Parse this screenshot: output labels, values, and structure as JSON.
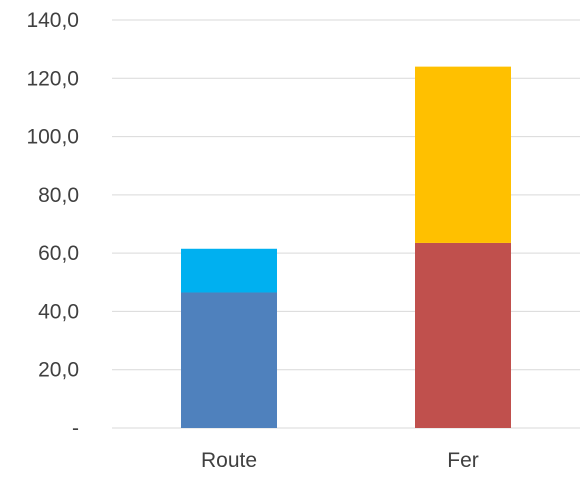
{
  "chart_data": {
    "type": "bar",
    "stacked": true,
    "categories": [
      "Route",
      "Fer"
    ],
    "bars": [
      {
        "category": "Route",
        "segments": [
          {
            "value": 46.5,
            "color": "#4f81bd"
          },
          {
            "value": 15.0,
            "color": "#00b0f0"
          }
        ]
      },
      {
        "category": "Fer",
        "segments": [
          {
            "value": 63.5,
            "color": "#c0504d"
          },
          {
            "value": 60.5,
            "color": "#ffc000"
          }
        ]
      }
    ],
    "ylim": [
      0,
      140
    ],
    "yticks": [
      0,
      20,
      40,
      60,
      80,
      100,
      120,
      140
    ],
    "ytick_labels": [
      "-",
      "20,0",
      "40,0",
      "60,0",
      "80,0",
      "100,0",
      "120,0",
      "140,0"
    ],
    "grid": true,
    "legend": "none",
    "title": "",
    "xlabel": "",
    "ylabel": ""
  }
}
